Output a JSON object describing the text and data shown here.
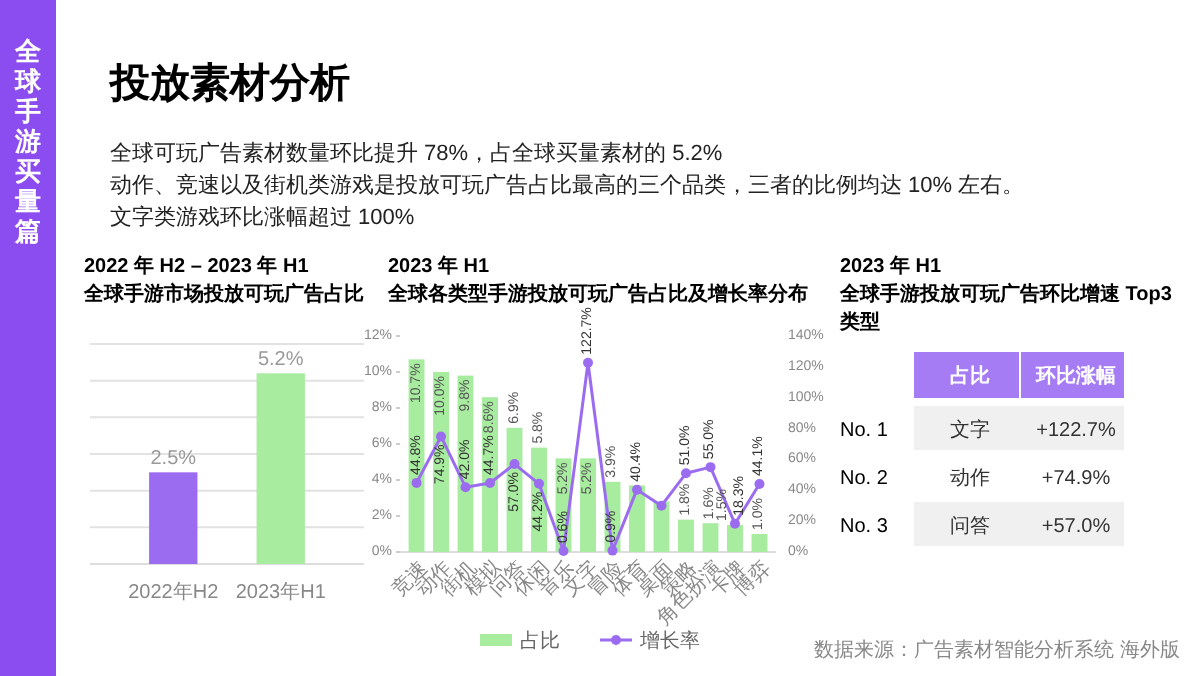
{
  "chart_data": [
    {
      "type": "other",
      "title": "投放素材分析",
      "annotations": [
        "全球手游买量篇",
        "全球可玩广告素材数量环比提升 78%，占全球买量素材的 5.2%",
        "动作、竞速以及街机类游戏是投放可玩广告占比最高的三个品类，三者的比例均达 10% 左右。",
        "文字类游戏环比涨幅超过 100%",
        "数据来源：广告素材智能分析系统 海外版"
      ]
    },
    {
      "type": "bar",
      "title": "2022 年 H2 – 2023 年 H1",
      "subtitle": "全球手游市场投放可玩广告占比",
      "categories": [
        "2022年H2",
        "2023年H1"
      ],
      "values": [
        2.5,
        5.2
      ],
      "colors": [
        "#9b6cf0",
        "#a8eca0"
      ],
      "value_labels": [
        "2.5%",
        "5.2%"
      ],
      "ylim": [
        0,
        6
      ],
      "grid": "y",
      "tick_labels": "x"
    },
    {
      "type": "bar",
      "title": "2023 年 H1",
      "subtitle": "全球各类型手游投放可玩广告占比及增长率分布",
      "categories": [
        "竞速",
        "动作",
        "街机",
        "模拟",
        "问答",
        "休闲",
        "音乐",
        "文字",
        "冒险",
        "体育",
        "桌面",
        "策略",
        "角色扮演",
        "卡牌",
        "博弈"
      ],
      "series": [
        {
          "name": "占比",
          "type": "bar",
          "color": "#a8eca0",
          "values": [
            10.7,
            10.0,
            9.8,
            8.6,
            6.9,
            5.8,
            5.2,
            5.2,
            3.9,
            3.7,
            2.8,
            1.8,
            1.6,
            1.5,
            1.0
          ],
          "value_labels": [
            "10.7%",
            "10.0%",
            "9.8%",
            "8.6%",
            "6.9%",
            "5.8%",
            "5.2%",
            "5.2%",
            "3.9%",
            null,
            null,
            "1.8%",
            "1.6%",
            "1.5%",
            "1.0%"
          ]
        },
        {
          "name": "增长率",
          "type": "line",
          "axis": "y2",
          "color": "#9b6cf0",
          "values": [
            44.8,
            74.9,
            42.0,
            44.7,
            57.0,
            44.2,
            0.6,
            122.7,
            0.9,
            40.4,
            30,
            51.0,
            55.0,
            18.3,
            44.1
          ],
          "value_labels": [
            "44.8%",
            "74.9%",
            "42.0%",
            "44.7%",
            "57.0%",
            "44.2%",
            "0.6%",
            "122.7%",
            "0.9%",
            "40.4%",
            null,
            "51.0%",
            "55.0%",
            "18.3%",
            "44.1%"
          ]
        }
      ],
      "ylim": [
        0,
        12
      ],
      "yticks": [
        {
          "value": 0,
          "label": "0%"
        },
        {
          "value": 2,
          "label": "2%"
        },
        {
          "value": 4,
          "label": "4%"
        },
        {
          "value": 6,
          "label": "6%"
        },
        {
          "value": 8,
          "label": "8%"
        },
        {
          "value": 10,
          "label": "10%"
        },
        {
          "value": 12,
          "label": "12%"
        }
      ],
      "y2lim": [
        0,
        140
      ],
      "y2ticks": [
        {
          "value": 0,
          "label": "0%"
        },
        {
          "value": 20,
          "label": "20%"
        },
        {
          "value": 40,
          "label": "40%"
        },
        {
          "value": 60,
          "label": "60%"
        },
        {
          "value": 80,
          "label": "80%"
        },
        {
          "value": 100,
          "label": "100%"
        },
        {
          "value": 120,
          "label": "120%"
        },
        {
          "value": 140,
          "label": "140%"
        }
      ],
      "legend": "bottom",
      "marker": "circle"
    },
    {
      "type": "other",
      "title": "2023 年 H1",
      "subtitle": "全球手游投放可玩广告环比增速 Top3 类型",
      "annotations": [
        "占比",
        "环比涨幅",
        "No. 1",
        "文字",
        "+122.7%",
        "No. 2",
        "动作",
        "+74.9%",
        "No. 3",
        "问答",
        "+57.0%"
      ]
    }
  ]
}
